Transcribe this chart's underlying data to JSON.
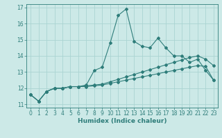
{
  "xlabel": "Humidex (Indice chaleur)",
  "ylabel": "",
  "xlim": [
    -0.5,
    23.5
  ],
  "ylim": [
    10.8,
    17.2
  ],
  "yticks": [
    11,
    12,
    13,
    14,
    15,
    16,
    17
  ],
  "xticks": [
    0,
    1,
    2,
    3,
    4,
    5,
    6,
    7,
    8,
    9,
    10,
    11,
    12,
    13,
    14,
    15,
    16,
    17,
    18,
    19,
    20,
    21,
    22,
    23
  ],
  "background_color": "#cce9e7",
  "grid_color": "#aad4d2",
  "line_color": "#2e7d7a",
  "line1_y": [
    11.6,
    11.2,
    11.8,
    12.0,
    12.0,
    12.1,
    12.1,
    12.2,
    13.1,
    13.3,
    14.8,
    16.5,
    16.9,
    14.9,
    14.6,
    14.5,
    15.1,
    14.5,
    14.0,
    14.0,
    13.6,
    13.8,
    13.1,
    12.5
  ],
  "line2_y": [
    11.6,
    11.2,
    11.8,
    12.0,
    12.0,
    12.1,
    12.1,
    12.15,
    12.2,
    12.25,
    12.4,
    12.55,
    12.7,
    12.85,
    13.0,
    13.15,
    13.3,
    13.45,
    13.6,
    13.75,
    13.9,
    14.0,
    13.8,
    13.4
  ],
  "line3_y": [
    11.6,
    11.2,
    11.8,
    12.0,
    12.0,
    12.1,
    12.1,
    12.1,
    12.15,
    12.2,
    12.3,
    12.4,
    12.5,
    12.6,
    12.7,
    12.8,
    12.9,
    13.0,
    13.1,
    13.2,
    13.3,
    13.4,
    13.35,
    12.5
  ],
  "markersize": 2.0,
  "linewidth": 0.8,
  "tick_labelsize": 5.5,
  "xlabel_fontsize": 6.5
}
